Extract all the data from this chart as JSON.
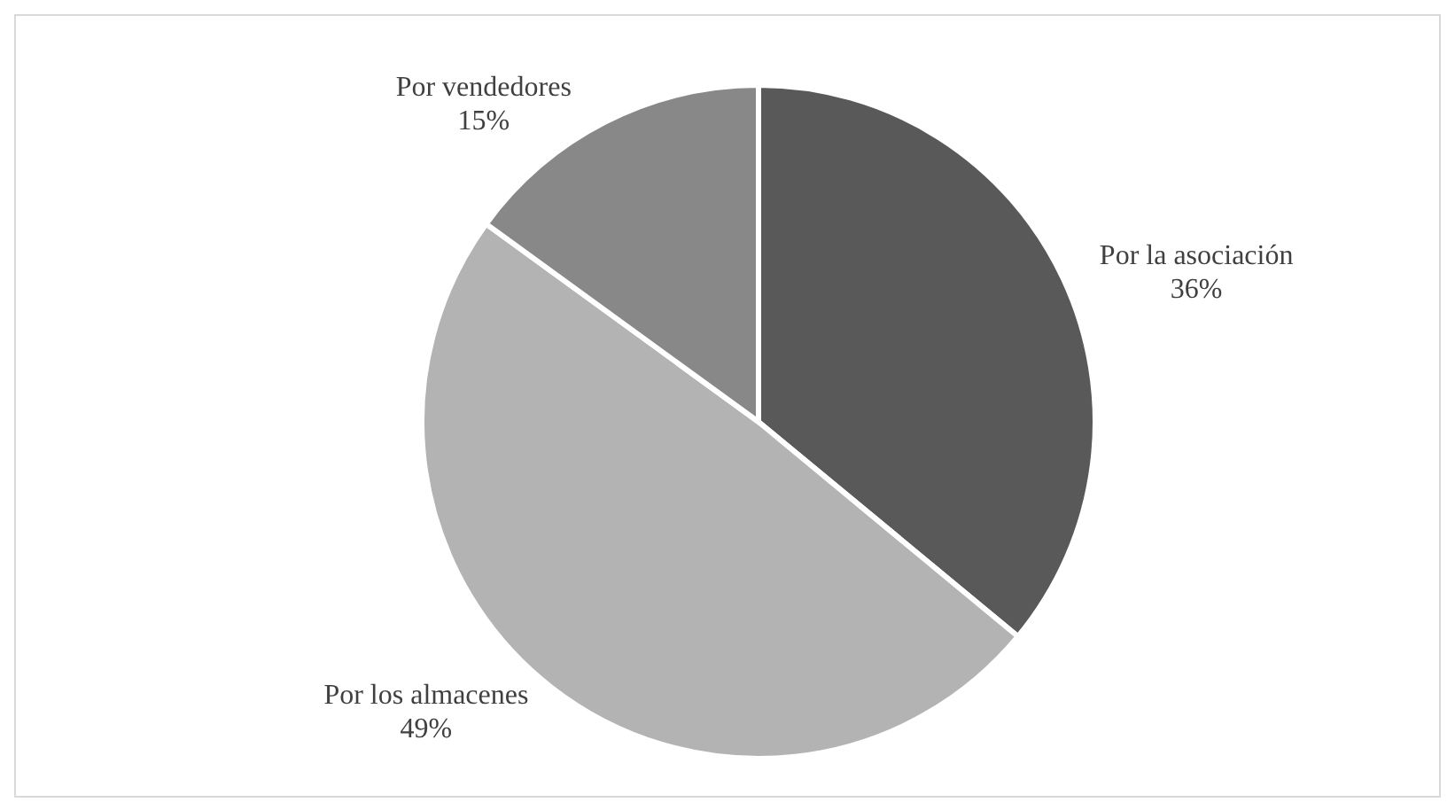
{
  "chart_data": {
    "type": "pie",
    "categories": [
      "Por la asociación",
      "Por los almacenes",
      "Por vendedores"
    ],
    "values": [
      36,
      49,
      15
    ],
    "colors": [
      "#595959",
      "#b3b3b3",
      "#888888"
    ],
    "data_labels": true,
    "value_labels": [
      "36%",
      "49%",
      "15%"
    ]
  }
}
